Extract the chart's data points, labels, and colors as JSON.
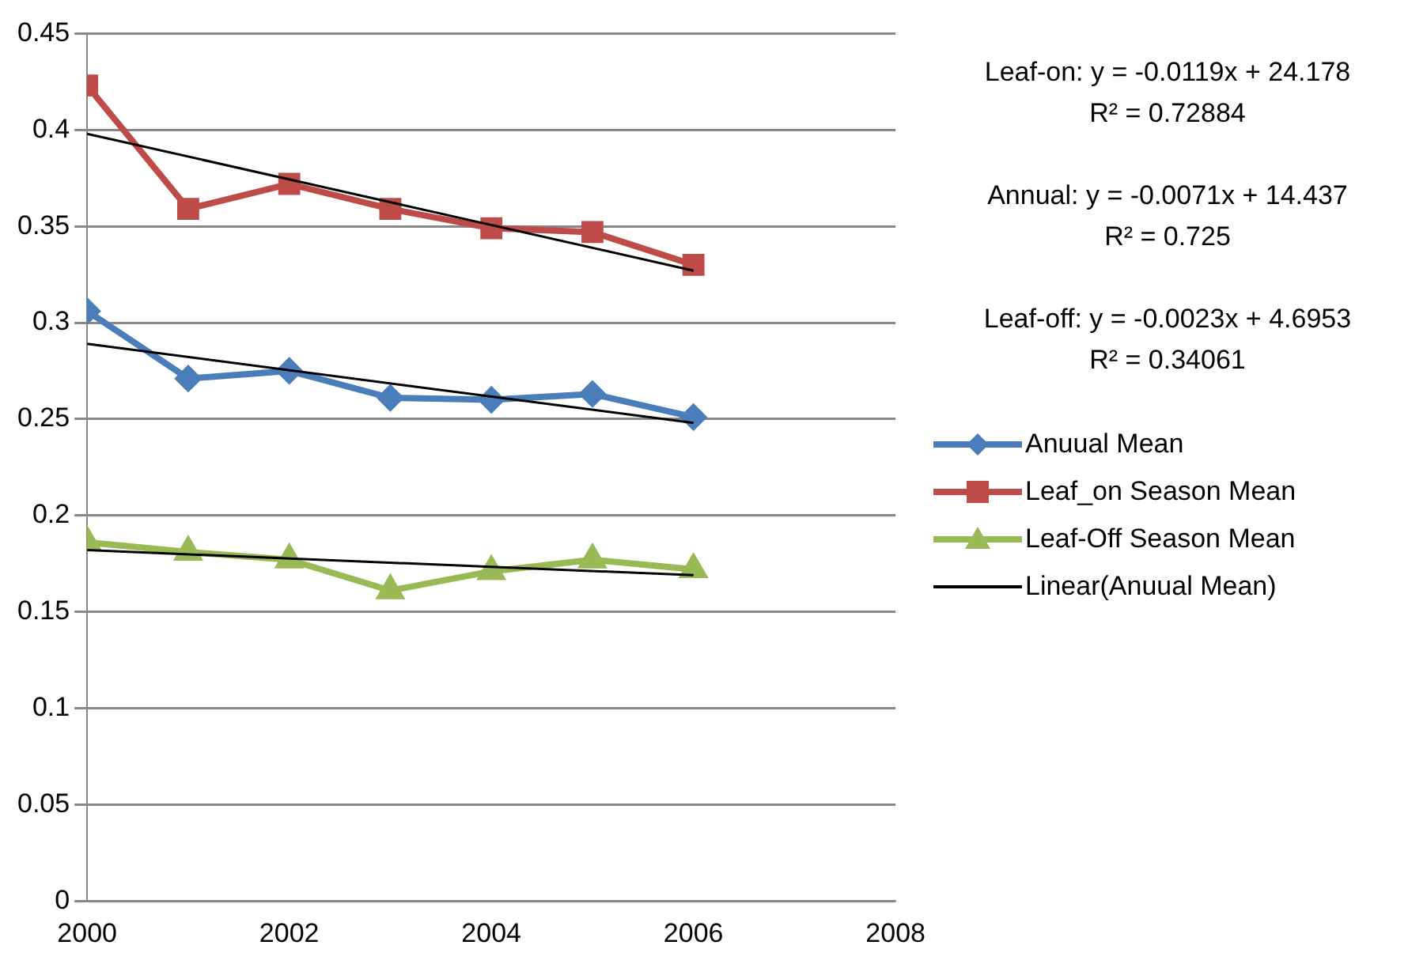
{
  "chart_data": {
    "type": "line",
    "xlim": [
      2000,
      2008
    ],
    "xticks": [
      2000,
      2002,
      2004,
      2006,
      2008
    ],
    "ylim": [
      0,
      0.45
    ],
    "yticks": [
      0,
      0.05,
      0.1,
      0.15,
      0.2,
      0.25,
      0.3,
      0.35,
      0.4,
      0.45
    ],
    "grid": "y",
    "legend": "right",
    "annotations": [
      "Leaf-on:  y = -0.0119x + 24.178\nR² = 0.72884",
      "Annual:  y = -0.0071x + 14.437\nR² = 0.725",
      "Leaf-off:  y = -0.0023x + 4.6953\nR² = 0.34061"
    ],
    "series": [
      {
        "name": "Anuual Mean",
        "color": "#4a7ebb",
        "marker": "diamond",
        "x": [
          2000,
          2001,
          2002,
          2003,
          2004,
          2005,
          2006
        ],
        "values": [
          0.306,
          0.271,
          0.275,
          0.261,
          0.26,
          0.263,
          0.251
        ]
      },
      {
        "name": "Leaf_on Season Mean",
        "color": "#be4b48",
        "marker": "square",
        "x": [
          2000,
          2001,
          2002,
          2003,
          2004,
          2005,
          2006
        ],
        "values": [
          0.423,
          0.359,
          0.372,
          0.359,
          0.349,
          0.347,
          0.33
        ]
      },
      {
        "name": "Leaf-Off Season Mean",
        "color": "#98b954",
        "marker": "triangle",
        "x": [
          2000,
          2001,
          2002,
          2003,
          2004,
          2005,
          2006
        ],
        "values": [
          0.186,
          0.181,
          0.177,
          0.161,
          0.171,
          0.177,
          0.172
        ]
      },
      {
        "name": "Linear(Anuual Mean)",
        "color": "#000000",
        "marker": "none",
        "x": [
          2000,
          2006
        ],
        "values": [
          0.289,
          0.248
        ]
      },
      {
        "color": "#000000",
        "marker": "none",
        "x": [
          2000,
          2006
        ],
        "values": [
          0.398,
          0.327
        ]
      },
      {
        "color": "#000000",
        "marker": "none",
        "x": [
          2000,
          2006
        ],
        "values": [
          0.182,
          0.169
        ]
      }
    ]
  }
}
